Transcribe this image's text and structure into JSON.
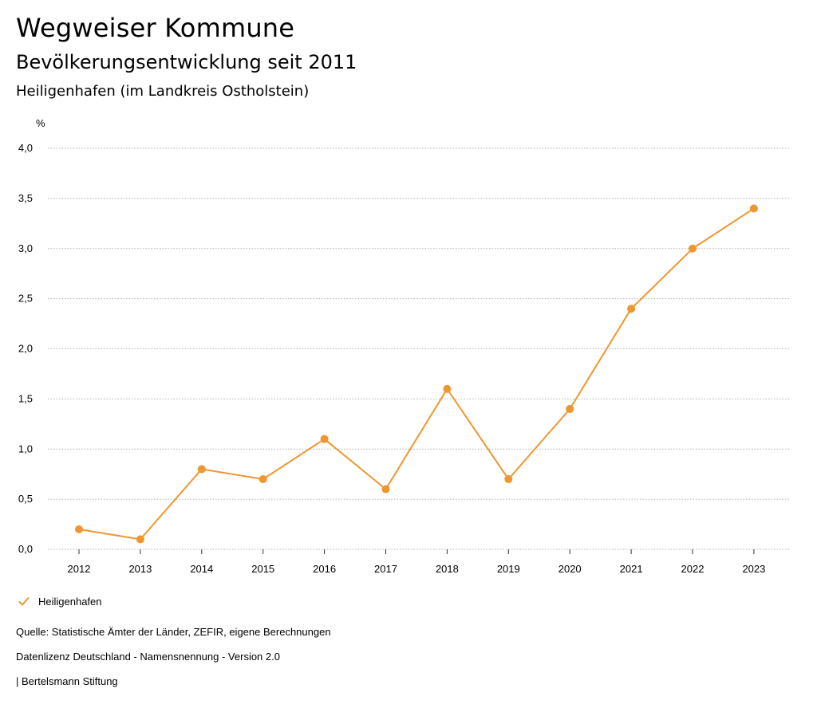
{
  "header": {
    "title": "Wegweiser Kommune",
    "subtitle": "Bevölkerungsentwicklung seit 2011",
    "region": "Heiligenhafen (im Landkreis Ostholstein)"
  },
  "chart_data": {
    "type": "line",
    "title": "Bevölkerungsentwicklung seit 2011",
    "xlabel": "",
    "ylabel": "%",
    "categories": [
      "2012",
      "2013",
      "2014",
      "2015",
      "2016",
      "2017",
      "2018",
      "2019",
      "2020",
      "2021",
      "2022",
      "2023"
    ],
    "series": [
      {
        "name": "Heiligenhafen",
        "color": "#f0962e",
        "values": [
          0.2,
          0.1,
          0.8,
          0.7,
          1.1,
          0.6,
          1.6,
          0.7,
          1.4,
          2.4,
          3.0,
          3.4
        ]
      }
    ],
    "ylim": [
      0,
      4
    ],
    "yticks": [
      0,
      0.5,
      1,
      1.5,
      2,
      2.5,
      3,
      3.5,
      4
    ],
    "ytick_labels": [
      "0,0",
      "0,5",
      "1,0",
      "1,5",
      "2,0",
      "2,5",
      "3,0",
      "3,5",
      "4,0"
    ],
    "grid": true,
    "legend": "bottom-left"
  },
  "legend": {
    "label": "Heiligenhafen",
    "icon": "check-icon"
  },
  "footer": {
    "source": "Quelle: Statistische Ämter der Länder, ZEFIR, eigene Berechnungen",
    "license": "Datenlizenz Deutschland - Namensnennung - Version 2.0",
    "brand": "| Bertelsmann Stiftung"
  },
  "colors": {
    "accent": "#f0962e",
    "grid": "#b0b0b0",
    "text": "#000000"
  }
}
